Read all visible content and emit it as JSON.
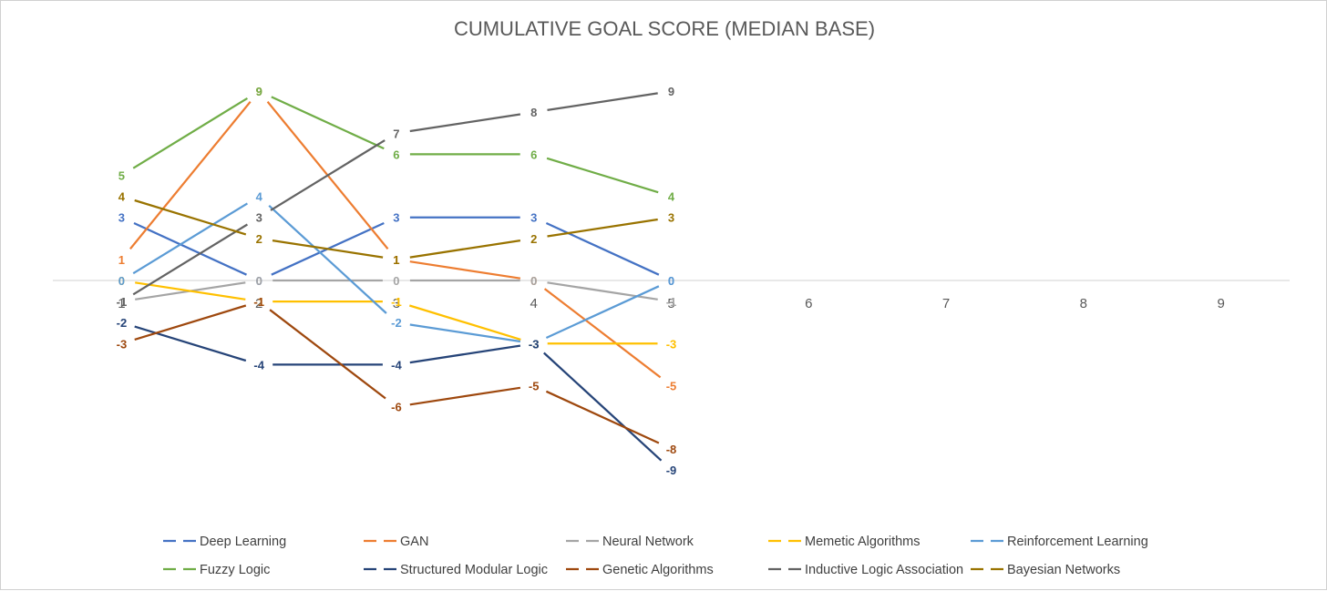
{
  "chart_data": {
    "type": "line",
    "title": "CUMULATIVE GOAL SCORE (MEDIAN BASE)",
    "xlabel": "",
    "ylabel": "",
    "x": [
      1,
      2,
      3,
      4,
      5
    ],
    "x_ticks": [
      1,
      2,
      3,
      4,
      5,
      6,
      7,
      8,
      9
    ],
    "x_tick_labels": [
      "1",
      "2",
      "3",
      "4",
      "5",
      "6",
      "7",
      "8",
      "9"
    ],
    "xlim": [
      0.5,
      9.5
    ],
    "ylim": [
      -13,
      13
    ],
    "grid": false,
    "legend_position": "bottom",
    "series": [
      {
        "name": "Deep Learning",
        "color": "#4472C4",
        "values": [
          3,
          0,
          3,
          3,
          0
        ]
      },
      {
        "name": "GAN",
        "color": "#ED7D31",
        "values": [
          1,
          9,
          1,
          0,
          -5
        ]
      },
      {
        "name": "Neural Network",
        "color": "#A5A5A5",
        "values": [
          -1,
          0,
          0,
          0,
          -1
        ]
      },
      {
        "name": "Memetic Algorithms",
        "color": "#FFC000",
        "values": [
          0,
          -1,
          -1,
          -3,
          -3
        ]
      },
      {
        "name": "Reinforcement Learning",
        "color": "#5B9BD5",
        "values": [
          0,
          4,
          -2,
          -3,
          0
        ]
      },
      {
        "name": "Fuzzy Logic",
        "color": "#70AD47",
        "values": [
          5,
          9,
          6,
          6,
          4
        ]
      },
      {
        "name": "Structured Modular Logic",
        "color": "#264478",
        "values": [
          -2,
          -4,
          -4,
          -3,
          -9
        ]
      },
      {
        "name": "Genetic Algorithms",
        "color": "#9E480E",
        "values": [
          -3,
          -1,
          -6,
          -5,
          -8
        ]
      },
      {
        "name": "Inductive Logic Association",
        "color": "#636363",
        "values": [
          -1,
          3,
          7,
          8,
          9
        ]
      },
      {
        "name": "Bayesian Networks",
        "color": "#997300",
        "values": [
          4,
          2,
          1,
          2,
          3
        ]
      }
    ]
  }
}
